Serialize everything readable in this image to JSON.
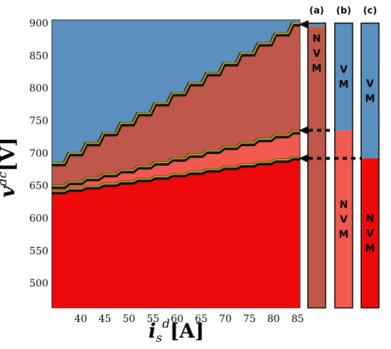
{
  "chart_data": {
    "type": "area",
    "title": "",
    "xlabel": {
      "main": "i",
      "sub": "s",
      "sup": "d",
      "unit": "[A]"
    },
    "ylabel": {
      "main": "v",
      "sup": "dc",
      "unit": "[V]"
    },
    "xlim": [
      34,
      85.5
    ],
    "ylim": [
      462,
      905
    ],
    "x_ticks": [
      40,
      45,
      50,
      55,
      60,
      65,
      70,
      75,
      80,
      85
    ],
    "y_ticks": [
      500,
      550,
      600,
      650,
      700,
      750,
      800,
      850,
      900
    ],
    "regions": [
      {
        "name": "top",
        "color": "#5b8fbd"
      },
      {
        "name": "upper-band",
        "color": "#c0574b"
      },
      {
        "name": "middle-band",
        "color": "#f25a4f"
      },
      {
        "name": "bottom",
        "color": "#ee0a0a"
      }
    ],
    "boundaries": [
      {
        "name": "b1",
        "x": [
          34,
          84
        ],
        "y": [
          683,
          898
        ]
      },
      {
        "name": "b2",
        "x": [
          34,
          84
        ],
        "y": [
          648,
          732
        ]
      },
      {
        "name": "b3",
        "x": [
          34,
          84
        ],
        "y": [
          640,
          692
        ]
      }
    ],
    "boundary_colors": {
      "edge": "#0d0d0d",
      "band": "#b4a020"
    },
    "bars": [
      {
        "title": "(a)",
        "segments": [
          {
            "from": 462,
            "to": 895,
            "color": "#c0574b",
            "label": [
              "N",
              "V",
              "M"
            ],
            "label_pos": "top"
          },
          {
            "from": 895,
            "to": 900,
            "color": "#5b8fbd",
            "label": null
          }
        ]
      },
      {
        "title": "(b)",
        "segments": [
          {
            "from": 462,
            "to": 735,
            "color": "#f25a4f",
            "label": [
              "N",
              "V",
              "M"
            ]
          },
          {
            "from": 735,
            "to": 900,
            "color": "#5b8fbd",
            "label": [
              "V",
              "M"
            ]
          }
        ]
      },
      {
        "title": "(c)",
        "segments": [
          {
            "from": 462,
            "to": 692,
            "color": "#ee0a0a",
            "label": [
              "N",
              "V",
              "M"
            ]
          },
          {
            "from": 692,
            "to": 900,
            "color": "#5b8fbd",
            "label": [
              "V",
              "M"
            ]
          }
        ]
      }
    ],
    "markers": [
      {
        "y": 898,
        "style": "solid"
      },
      {
        "y": 735,
        "style": "dotted"
      },
      {
        "y": 692,
        "style": "dotted"
      }
    ]
  }
}
